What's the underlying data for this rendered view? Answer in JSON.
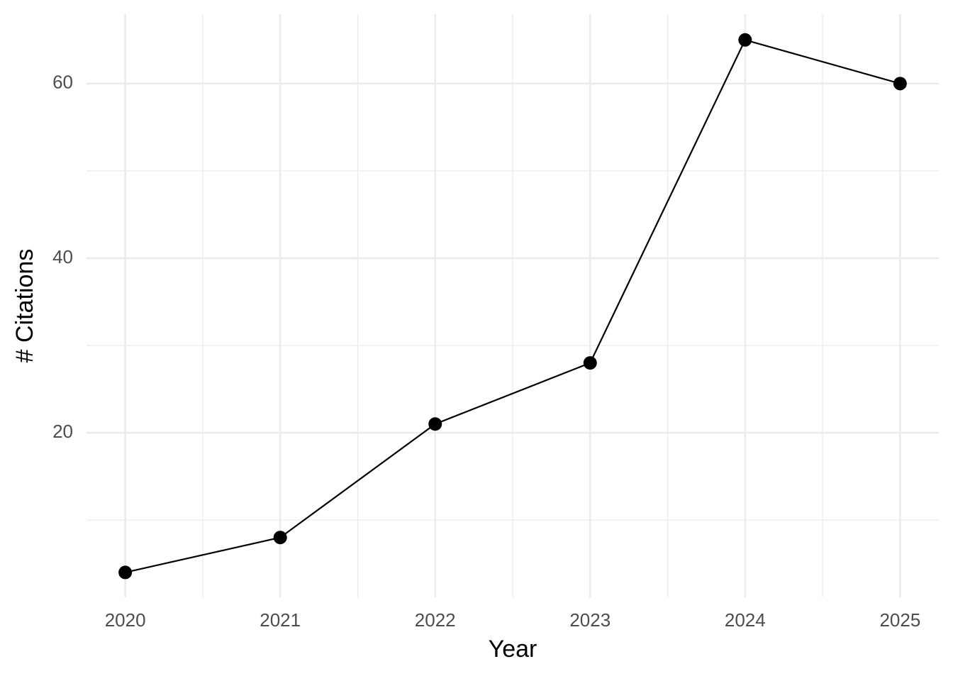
{
  "chart_data": {
    "type": "line",
    "x_label": "Year",
    "y_label": "# Citations",
    "x": [
      2020,
      2021,
      2022,
      2023,
      2024,
      2025
    ],
    "values": [
      4,
      8,
      21,
      28,
      65,
      60
    ],
    "color": "#000000",
    "xlim": [
      2019.75,
      2025.25
    ],
    "xticks": [
      2020,
      2021,
      2022,
      2023,
      2024,
      2025
    ],
    "x_minor_ticks": [
      2020.5,
      2021.5,
      2022.5,
      2023.5,
      2024.5
    ],
    "ylim": [
      1.15,
      67.95
    ],
    "yticks": [
      20,
      40,
      60
    ],
    "y_minor_ticks": [
      10,
      30,
      50
    ],
    "grid": true
  }
}
